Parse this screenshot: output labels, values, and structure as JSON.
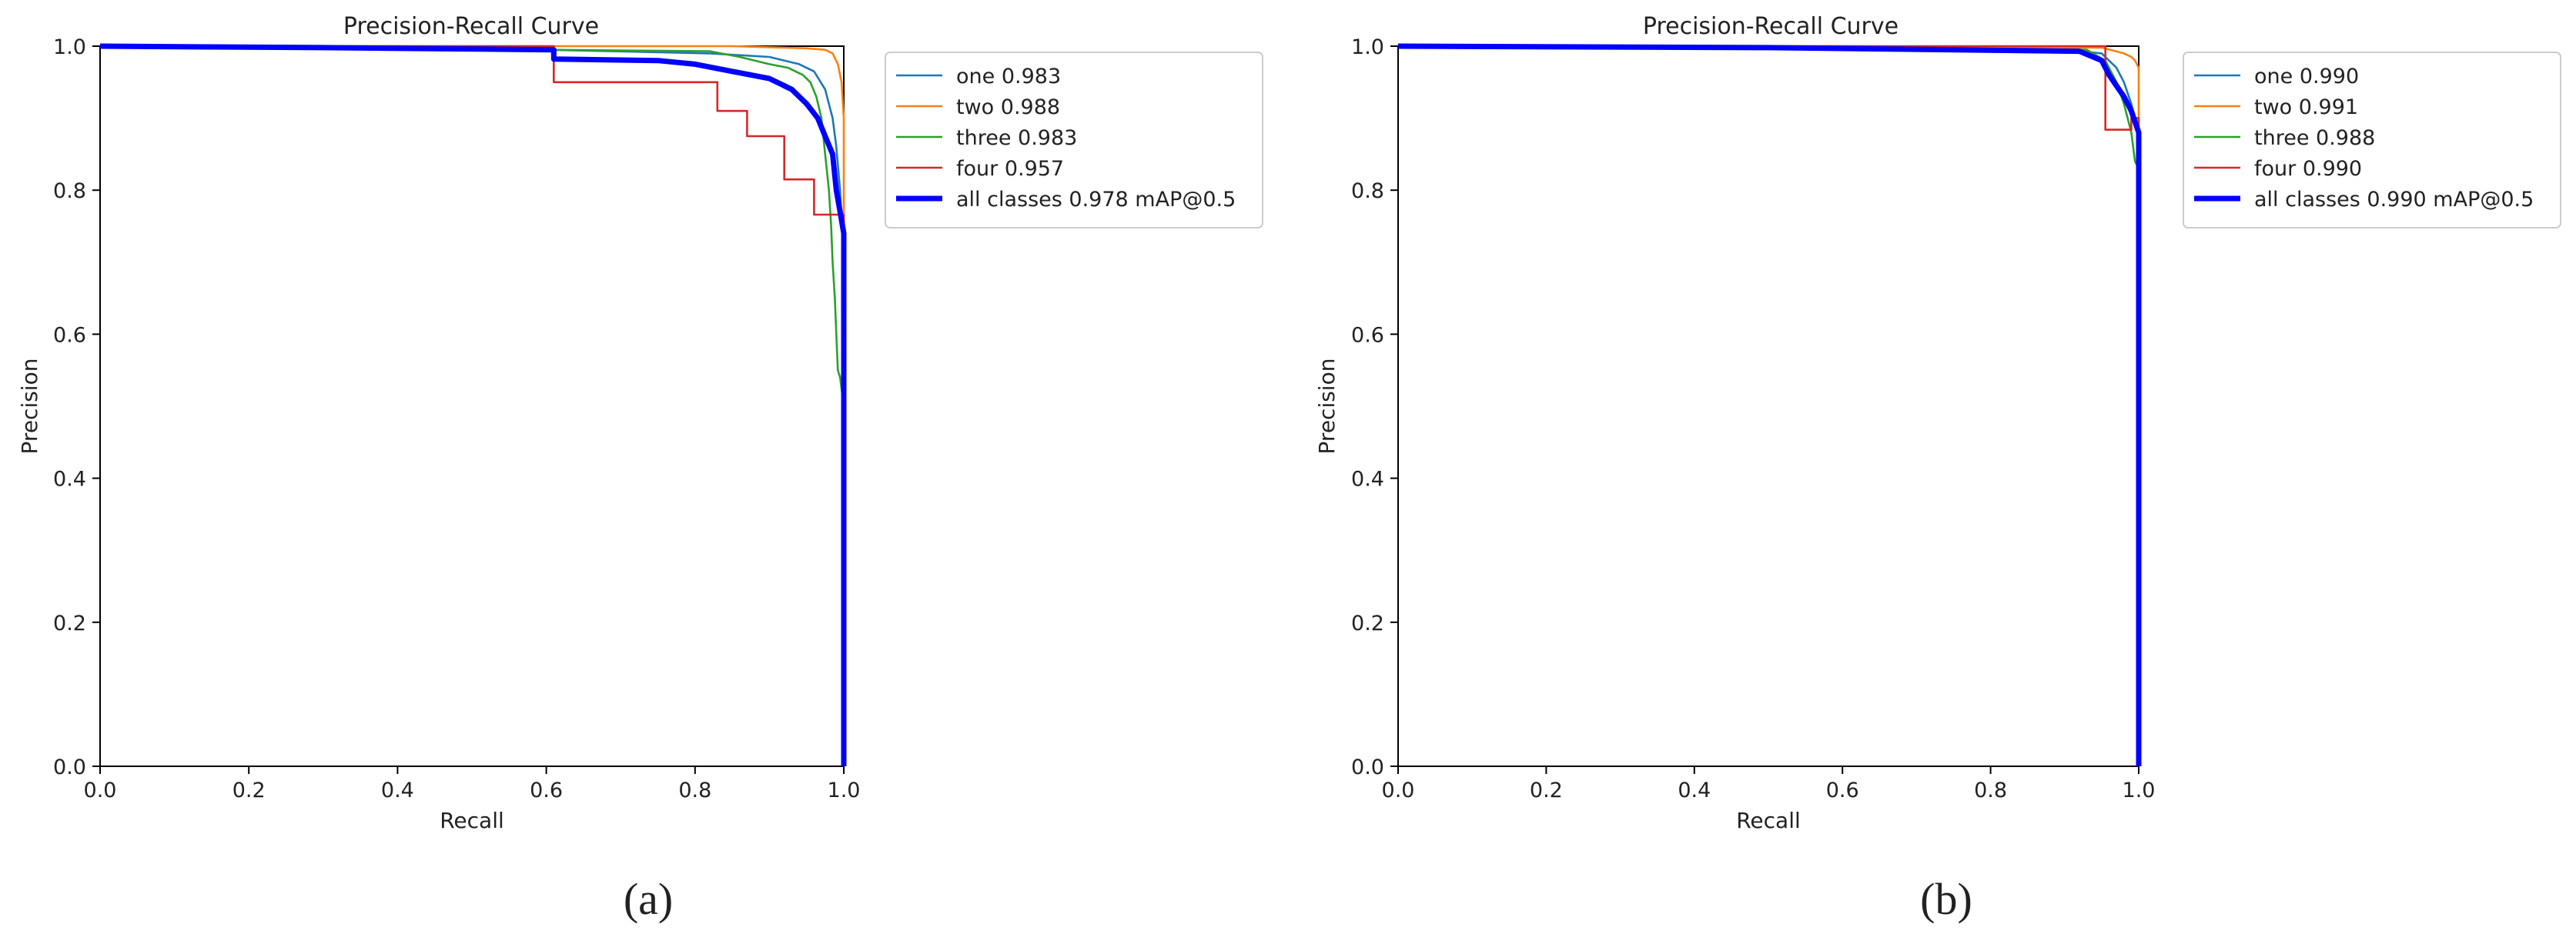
{
  "chart_data": [
    {
      "type": "line",
      "panel_label": "(a)",
      "title": "Precision-Recall Curve",
      "xlabel": "Recall",
      "ylabel": "Precision",
      "xlim": [
        0,
        1
      ],
      "ylim": [
        0,
        1
      ],
      "xticks": [
        "0.0",
        "0.2",
        "0.4",
        "0.6",
        "0.8",
        "1.0"
      ],
      "yticks": [
        "0.0",
        "0.2",
        "0.4",
        "0.6",
        "0.8",
        "1.0"
      ],
      "grid": false,
      "legend_position": "outside-right",
      "series": [
        {
          "name": "one 0.983",
          "color": "#1f77b4",
          "bold": false,
          "x": [
            0,
            0.3,
            0.6,
            0.82,
            0.9,
            0.94,
            0.96,
            0.975,
            0.985,
            0.99,
            0.995,
            1.0,
            1.0
          ],
          "y": [
            1.0,
            0.998,
            0.995,
            0.99,
            0.985,
            0.975,
            0.965,
            0.94,
            0.9,
            0.86,
            0.8,
            0.7,
            0.0
          ]
        },
        {
          "name": "two 0.988",
          "color": "#ff7f0e",
          "bold": false,
          "x": [
            0,
            0.5,
            0.85,
            0.95,
            0.975,
            0.985,
            0.992,
            0.997,
            1.0,
            1.0
          ],
          "y": [
            1.0,
            1.0,
            1.0,
            0.997,
            0.995,
            0.99,
            0.975,
            0.95,
            0.9,
            0.0
          ]
        },
        {
          "name": "three 0.983",
          "color": "#2ca02c",
          "bold": false,
          "x": [
            0,
            0.4,
            0.6,
            0.82,
            0.86,
            0.9,
            0.925,
            0.945,
            0.955,
            0.963,
            0.97,
            0.975,
            0.98,
            0.983,
            0.985,
            0.988,
            0.99,
            0.992,
            0.995,
            1.0,
            1.0
          ],
          "y": [
            1.0,
            1.0,
            0.995,
            0.993,
            0.985,
            0.975,
            0.97,
            0.96,
            0.95,
            0.93,
            0.9,
            0.85,
            0.8,
            0.75,
            0.7,
            0.65,
            0.6,
            0.55,
            0.54,
            0.5,
            0.0
          ]
        },
        {
          "name": "four 0.957",
          "color": "#d62728",
          "bold": false,
          "x": [
            0,
            0.61,
            0.61,
            0.83,
            0.83,
            0.87,
            0.87,
            0.92,
            0.92,
            0.96,
            0.96,
            1.0,
            1.0
          ],
          "y": [
            1.0,
            1.0,
            0.95,
            0.95,
            0.91,
            0.91,
            0.875,
            0.875,
            0.815,
            0.815,
            0.766,
            0.766,
            0.0
          ]
        },
        {
          "name": "all classes 0.978 mAP@0.5",
          "color": "#0000ff",
          "bold": true,
          "x": [
            0,
            0.3,
            0.61,
            0.61,
            0.75,
            0.8,
            0.85,
            0.9,
            0.93,
            0.95,
            0.965,
            0.975,
            0.985,
            0.99,
            0.995,
            1.0,
            1.0
          ],
          "y": [
            1.0,
            0.998,
            0.995,
            0.982,
            0.98,
            0.975,
            0.965,
            0.955,
            0.94,
            0.92,
            0.9,
            0.875,
            0.85,
            0.8,
            0.77,
            0.74,
            0.0
          ]
        }
      ]
    },
    {
      "type": "line",
      "panel_label": "(b)",
      "title": "Precision-Recall Curve",
      "xlabel": "Recall",
      "ylabel": "Precision",
      "xlim": [
        0,
        1
      ],
      "ylim": [
        0,
        1
      ],
      "xticks": [
        "0.0",
        "0.2",
        "0.4",
        "0.6",
        "0.8",
        "1.0"
      ],
      "yticks": [
        "0.0",
        "0.2",
        "0.4",
        "0.6",
        "0.8",
        "1.0"
      ],
      "grid": false,
      "legend_position": "outside-right",
      "series": [
        {
          "name": "one 0.990",
          "color": "#1f77b4",
          "bold": false,
          "x": [
            0,
            0.5,
            0.9,
            0.95,
            0.97,
            0.98,
            0.99,
            0.995,
            1.0,
            1.0
          ],
          "y": [
            1.0,
            0.998,
            0.995,
            0.99,
            0.97,
            0.95,
            0.92,
            0.9,
            0.88,
            0.0
          ]
        },
        {
          "name": "two 0.991",
          "color": "#ff7f0e",
          "bold": false,
          "x": [
            0,
            0.6,
            0.95,
            0.98,
            0.99,
            0.995,
            1.0,
            1.0
          ],
          "y": [
            1.0,
            1.0,
            0.998,
            0.99,
            0.985,
            0.98,
            0.97,
            0.0
          ]
        },
        {
          "name": "three 0.988",
          "color": "#2ca02c",
          "bold": false,
          "x": [
            0,
            0.6,
            0.93,
            0.955,
            0.97,
            0.98,
            0.99,
            0.995,
            1.0,
            1.0
          ],
          "y": [
            1.0,
            0.998,
            0.995,
            0.98,
            0.95,
            0.92,
            0.88,
            0.84,
            0.83,
            0.0
          ]
        },
        {
          "name": "four 0.990",
          "color": "#d62728",
          "bold": false,
          "x": [
            0,
            0.955,
            0.955,
            0.99,
            0.99,
            1.0,
            1.0
          ],
          "y": [
            1.0,
            1.0,
            0.884,
            0.884,
            0.9,
            0.9,
            0.0
          ]
        },
        {
          "name": "all classes 0.990 mAP@0.5",
          "color": "#0000ff",
          "bold": true,
          "x": [
            0,
            0.5,
            0.92,
            0.95,
            0.96,
            0.97,
            0.98,
            0.99,
            0.995,
            1.0,
            1.0
          ],
          "y": [
            1.0,
            0.998,
            0.993,
            0.98,
            0.96,
            0.945,
            0.93,
            0.91,
            0.895,
            0.88,
            0.0
          ]
        }
      ]
    }
  ]
}
